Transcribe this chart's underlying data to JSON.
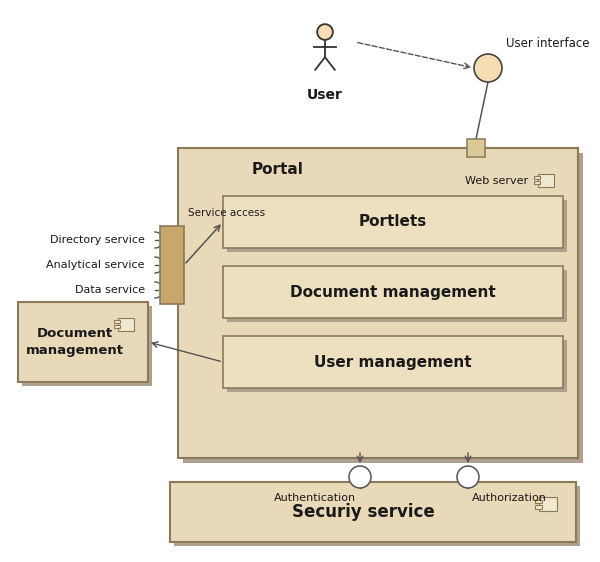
{
  "bg_color": "#ffffff",
  "portal_fill": "#e8d9b8",
  "portal_edge": "#8b7a5a",
  "inner_fill": "#ede0c0",
  "inner_edge": "#8b7a5a",
  "sec_fill": "#e8d9b8",
  "sec_edge": "#8b7a5a",
  "ext_fill": "#e8d9b8",
  "ext_edge": "#8b7a5a",
  "text_color": "#1a1a1a",
  "line_color": "#555555",
  "portal_label": "Portal",
  "web_server_label": "Web server",
  "service_access_label": "Service access",
  "portlets_label": "Portlets",
  "doc_mgmt_label": "Document management",
  "user_mgmt_label": "User management",
  "security_label": "Securiy service",
  "doc_mgmt_ext_label": "Document\nmanagement",
  "user_label": "User",
  "user_interface_label": "User interface",
  "dir_service_label": "Directory service",
  "anal_service_label": "Analytical service",
  "data_service_label": "Data service",
  "auth_label": "Authentication",
  "authz_label": "Authorization",
  "figw": 6.0,
  "figh": 5.62
}
